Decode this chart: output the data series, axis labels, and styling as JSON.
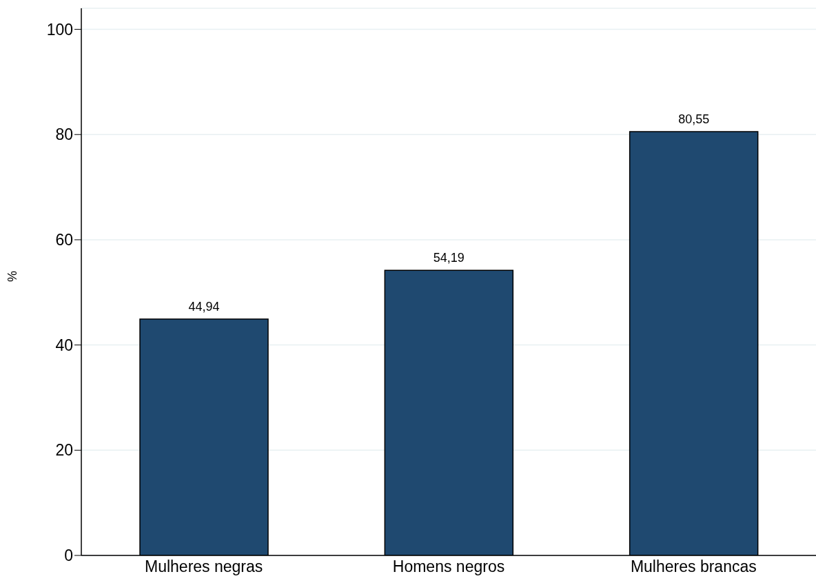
{
  "chart_data": {
    "type": "bar",
    "ylabel": "%",
    "categories": [
      "Mulheres negras",
      "Homens negros",
      "Mulheres brancas"
    ],
    "values": [
      44.94,
      54.19,
      80.55
    ],
    "value_labels": [
      "44,94",
      "54,19",
      "80,55"
    ],
    "color": "#1f4970",
    "ylim": [
      0,
      104
    ],
    "yticks": [
      0,
      20,
      40,
      60,
      80,
      100
    ],
    "grid": "y"
  }
}
